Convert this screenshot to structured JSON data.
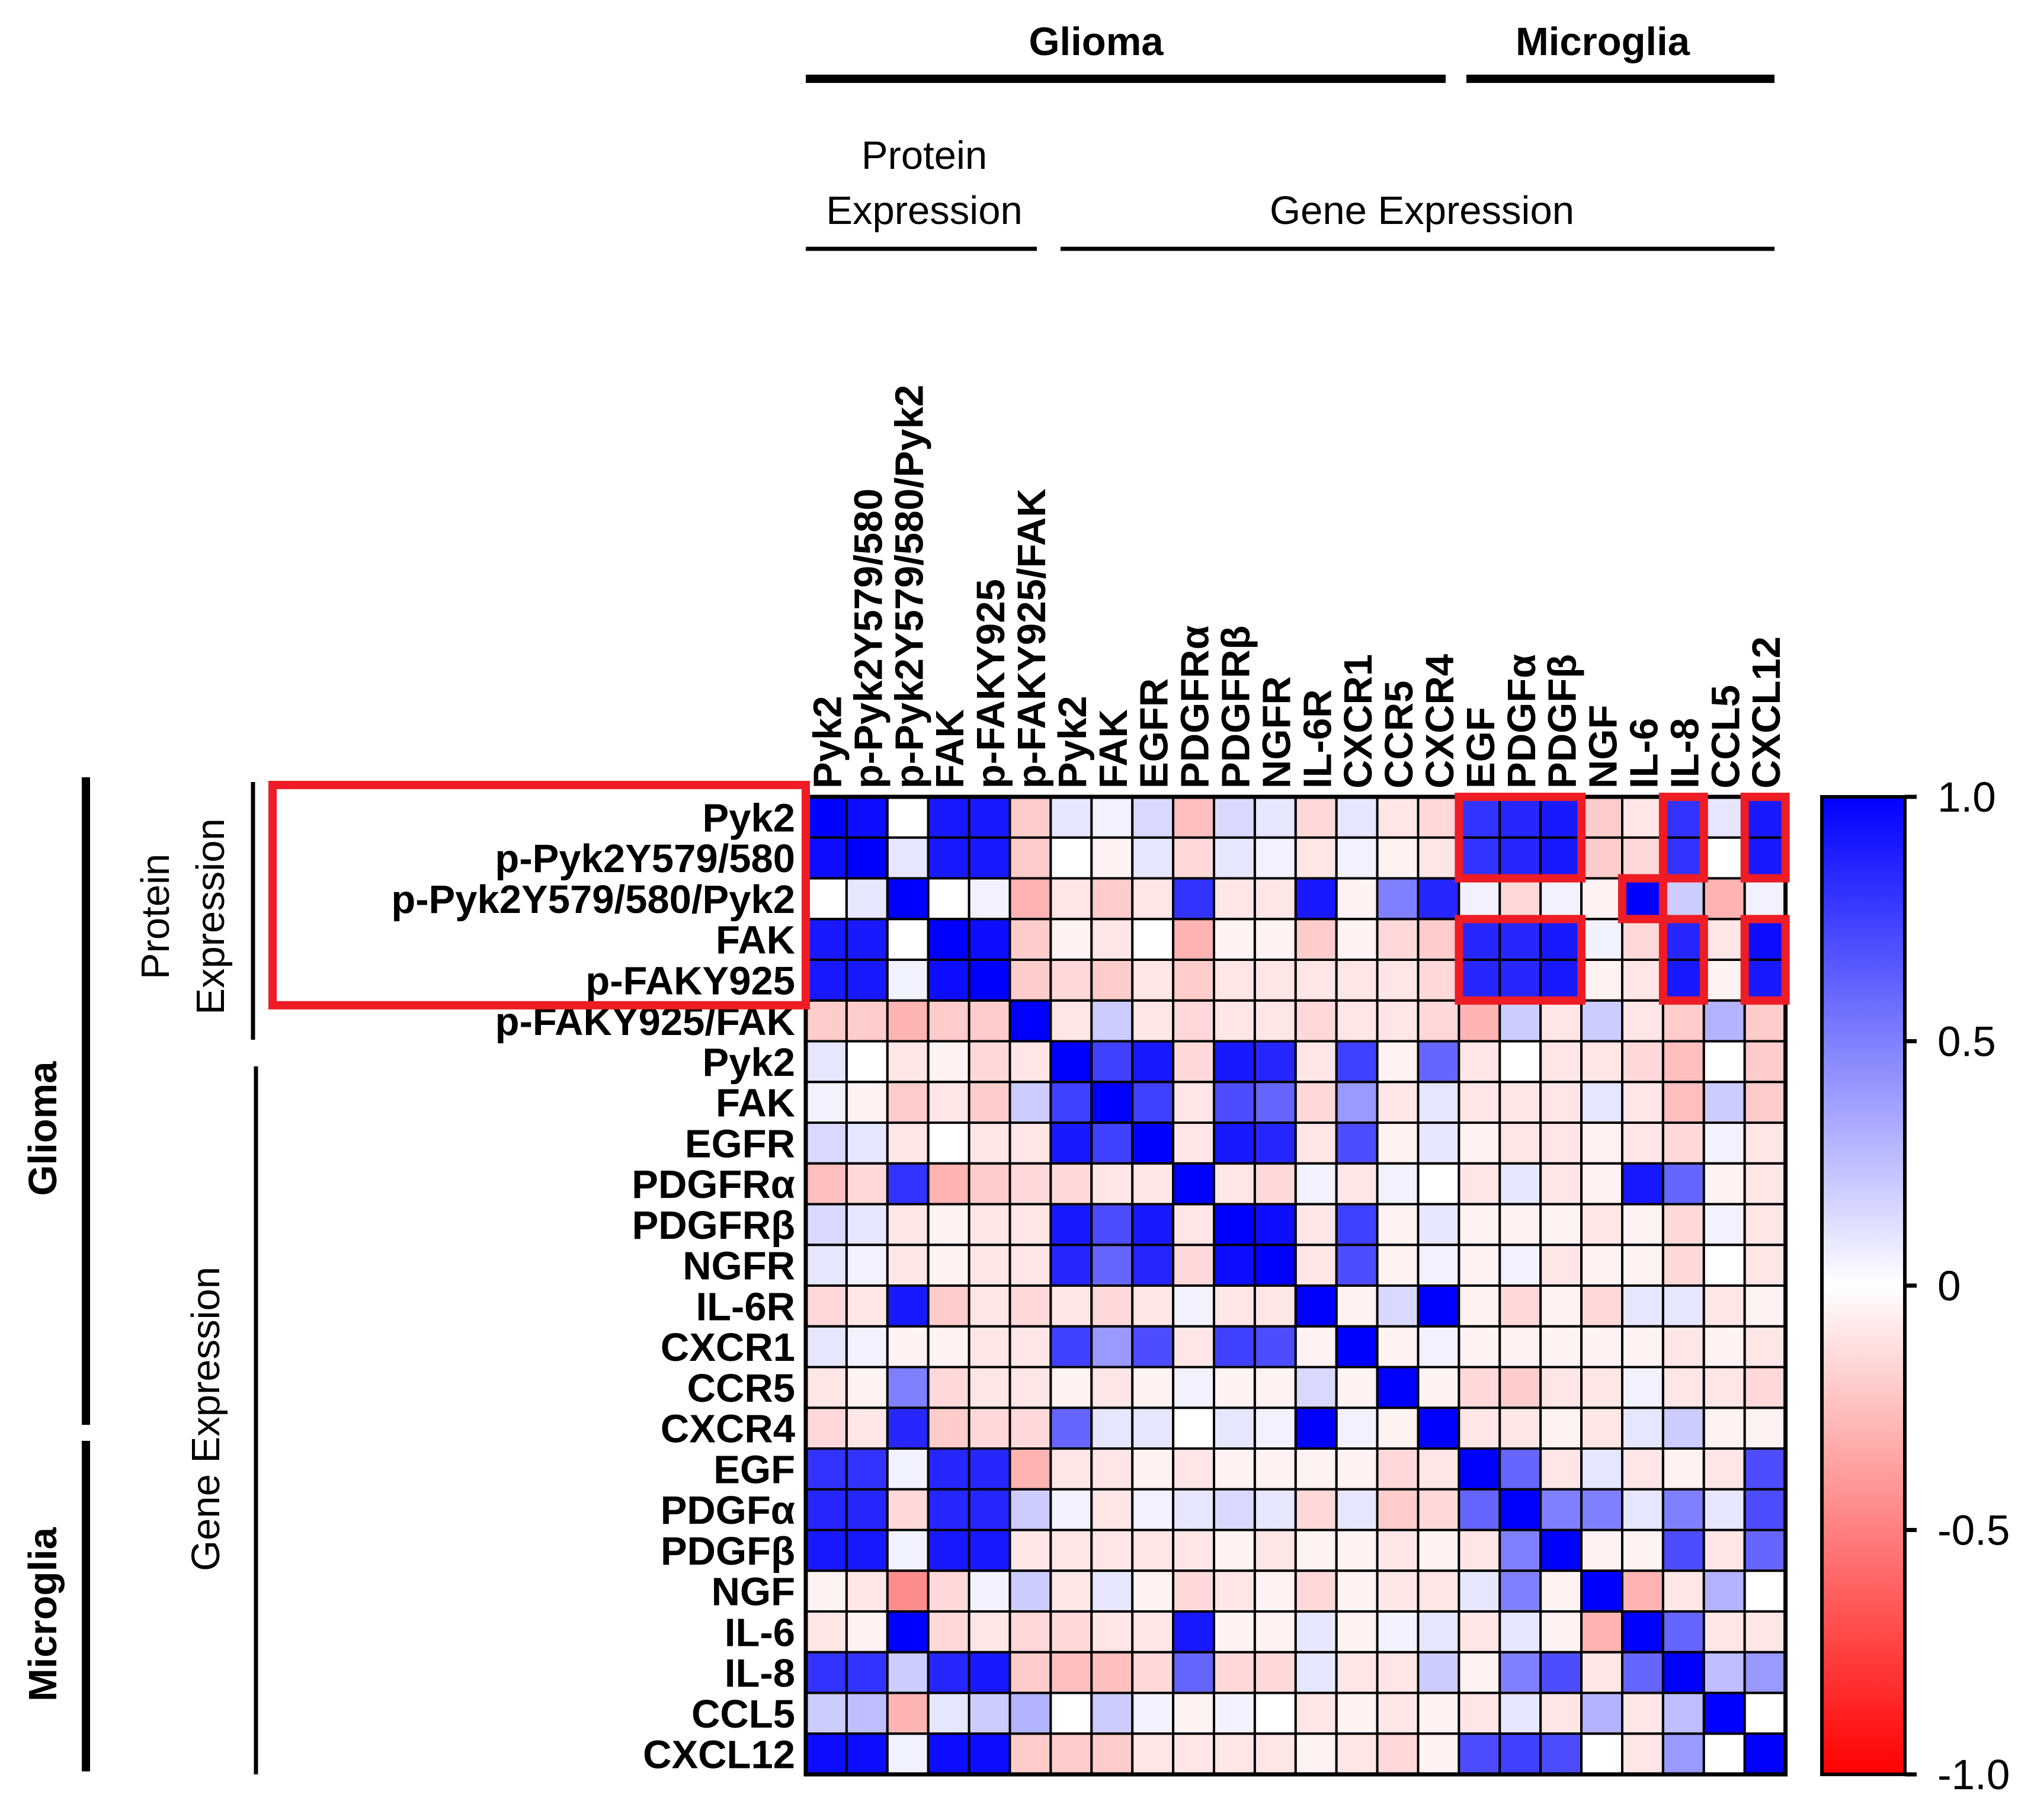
{
  "chart_data": {
    "type": "heatmap",
    "title": "",
    "group_headers": {
      "top": [
        {
          "label": "Glioma"
        },
        {
          "label": "Microglia"
        }
      ],
      "top_sub": [
        {
          "label": "Protein Expression"
        },
        {
          "label": "Gene Expression"
        }
      ],
      "left": [
        {
          "label": "Glioma"
        },
        {
          "label": "Microglia"
        }
      ],
      "left_sub": [
        {
          "label": "Protein Expression"
        },
        {
          "label": "Gene Expression"
        }
      ]
    },
    "row_labels": [
      "Pyk2",
      "p-Pyk2Y579/580",
      "p-Pyk2Y579/580/Pyk2",
      "FAK",
      "p-FAKY925",
      "p-FAKY925/FAK",
      "Pyk2",
      "FAK",
      "EGFR",
      "PDGFRα",
      "PDGFRβ",
      "NGFR",
      "IL-6R",
      "CXCR1",
      "CCR5",
      "CXCR4",
      "EGF",
      "PDGFα",
      "PDGFβ",
      "NGF",
      "IL-6",
      "IL-8",
      "CCL5",
      "CXCL12"
    ],
    "col_labels": [
      "Pyk2",
      "p-Pyk2Y579/580",
      "p-Pyk2Y579/580/Pyk2",
      "FAK",
      "p-FAKY925",
      "p-FAKY925/FAK",
      "Pyk2",
      "FAK",
      "EGFR",
      "PDGFRα",
      "PDGFRβ",
      "NGFR",
      "IL-6R",
      "CXCR1",
      "CCR5",
      "CXCR4",
      "EGF",
      "PDGFα",
      "PDGFβ",
      "NGF",
      "IL-6",
      "IL-8",
      "CCL5",
      "CXCL12"
    ],
    "values": [
      [
        1.0,
        0.95,
        0.0,
        0.9,
        0.9,
        -0.2,
        0.1,
        0.05,
        0.15,
        -0.25,
        0.15,
        0.1,
        -0.15,
        0.1,
        -0.1,
        -0.15,
        0.8,
        0.85,
        0.9,
        -0.2,
        -0.1,
        0.8,
        0.1,
        0.9
      ],
      [
        0.95,
        1.0,
        0.1,
        0.9,
        0.9,
        -0.2,
        0.0,
        -0.05,
        0.1,
        -0.15,
        0.1,
        0.05,
        -0.1,
        0.05,
        -0.05,
        -0.1,
        0.8,
        0.85,
        0.9,
        -0.2,
        -0.15,
        0.8,
        0.0,
        0.9
      ],
      [
        0.0,
        0.1,
        1.0,
        0.0,
        0.05,
        -0.3,
        -0.1,
        -0.2,
        -0.1,
        0.8,
        -0.1,
        -0.1,
        0.9,
        -0.05,
        0.5,
        0.85,
        0.05,
        -0.15,
        0.05,
        -0.05,
        1.0,
        0.2,
        -0.3,
        0.05
      ],
      [
        0.9,
        0.9,
        0.0,
        1.0,
        0.95,
        -0.2,
        -0.05,
        -0.1,
        0.0,
        -0.3,
        -0.05,
        -0.05,
        -0.2,
        -0.05,
        -0.15,
        -0.2,
        0.85,
        0.85,
        0.9,
        0.05,
        -0.15,
        0.85,
        -0.1,
        0.95
      ],
      [
        0.9,
        0.9,
        0.05,
        0.95,
        1.0,
        -0.2,
        -0.15,
        -0.2,
        -0.1,
        -0.2,
        -0.1,
        -0.1,
        -0.1,
        -0.1,
        -0.1,
        -0.15,
        0.85,
        0.85,
        0.9,
        -0.05,
        -0.1,
        0.9,
        -0.05,
        0.9
      ],
      [
        -0.2,
        -0.2,
        -0.3,
        -0.2,
        -0.2,
        1.0,
        -0.1,
        0.2,
        -0.1,
        -0.15,
        -0.1,
        -0.1,
        -0.15,
        -0.1,
        -0.1,
        -0.15,
        -0.3,
        0.2,
        -0.1,
        0.2,
        -0.1,
        -0.2,
        0.3,
        -0.2
      ],
      [
        0.1,
        0.0,
        -0.1,
        -0.05,
        -0.15,
        -0.1,
        1.0,
        0.75,
        0.9,
        -0.15,
        0.9,
        0.85,
        -0.1,
        0.75,
        -0.05,
        0.6,
        -0.1,
        0.0,
        -0.1,
        -0.1,
        -0.15,
        -0.25,
        0.0,
        -0.2
      ],
      [
        0.05,
        -0.05,
        -0.2,
        -0.1,
        -0.2,
        0.2,
        0.75,
        1.0,
        0.75,
        -0.1,
        0.7,
        0.6,
        -0.15,
        0.4,
        -0.1,
        0.1,
        -0.1,
        -0.1,
        -0.1,
        0.1,
        -0.1,
        -0.25,
        0.2,
        -0.2
      ],
      [
        0.15,
        0.1,
        -0.1,
        0.0,
        -0.1,
        -0.1,
        0.9,
        0.75,
        1.0,
        -0.1,
        0.9,
        0.85,
        -0.1,
        0.7,
        -0.05,
        0.1,
        -0.05,
        -0.1,
        -0.1,
        -0.05,
        -0.1,
        -0.15,
        0.05,
        -0.1
      ],
      [
        -0.25,
        -0.15,
        0.8,
        -0.3,
        -0.2,
        -0.15,
        -0.15,
        -0.1,
        -0.1,
        1.0,
        -0.1,
        -0.15,
        0.05,
        -0.1,
        0.05,
        0.0,
        -0.1,
        0.1,
        -0.1,
        -0.05,
        0.9,
        0.6,
        -0.05,
        -0.1
      ],
      [
        0.15,
        0.1,
        -0.1,
        -0.05,
        -0.1,
        -0.1,
        0.9,
        0.7,
        0.9,
        -0.1,
        1.0,
        0.95,
        -0.1,
        0.75,
        -0.05,
        0.1,
        -0.05,
        -0.05,
        -0.05,
        -0.1,
        -0.05,
        -0.15,
        0.05,
        -0.1
      ],
      [
        0.1,
        0.05,
        -0.1,
        -0.05,
        -0.1,
        -0.1,
        0.85,
        0.6,
        0.85,
        -0.15,
        0.95,
        1.0,
        -0.1,
        0.7,
        -0.05,
        0.05,
        -0.05,
        0.05,
        -0.1,
        -0.05,
        -0.05,
        -0.15,
        0.0,
        -0.1
      ],
      [
        -0.15,
        -0.1,
        0.9,
        -0.2,
        -0.1,
        -0.15,
        -0.1,
        -0.15,
        -0.1,
        0.05,
        -0.1,
        -0.1,
        1.0,
        -0.05,
        0.15,
        1.0,
        -0.05,
        -0.15,
        -0.05,
        -0.15,
        0.1,
        0.1,
        -0.1,
        -0.05
      ],
      [
        0.1,
        0.05,
        -0.05,
        -0.05,
        -0.1,
        -0.1,
        0.75,
        0.4,
        0.7,
        -0.1,
        0.75,
        0.7,
        -0.05,
        1.0,
        -0.05,
        0.05,
        -0.05,
        -0.05,
        -0.05,
        -0.05,
        -0.05,
        -0.1,
        -0.05,
        -0.1
      ],
      [
        -0.1,
        -0.05,
        0.5,
        -0.15,
        -0.1,
        -0.1,
        -0.05,
        -0.1,
        -0.05,
        0.05,
        -0.05,
        -0.05,
        0.15,
        -0.05,
        1.0,
        -0.05,
        -0.15,
        -0.2,
        -0.1,
        -0.1,
        0.05,
        -0.1,
        -0.1,
        -0.15
      ],
      [
        -0.15,
        -0.1,
        0.85,
        -0.2,
        -0.15,
        -0.15,
        0.6,
        0.1,
        0.1,
        0.0,
        0.1,
        0.05,
        1.0,
        0.05,
        -0.05,
        1.0,
        -0.1,
        -0.1,
        -0.05,
        -0.1,
        0.1,
        0.2,
        -0.05,
        -0.05
      ],
      [
        0.8,
        0.8,
        0.05,
        0.85,
        0.85,
        -0.3,
        -0.1,
        -0.1,
        -0.05,
        -0.1,
        -0.05,
        -0.05,
        -0.05,
        -0.05,
        -0.15,
        -0.1,
        1.0,
        0.6,
        -0.1,
        0.1,
        -0.1,
        -0.05,
        -0.1,
        0.7
      ],
      [
        0.85,
        0.85,
        -0.15,
        0.85,
        0.85,
        0.2,
        0.05,
        -0.1,
        0.05,
        0.1,
        0.15,
        0.1,
        -0.15,
        0.1,
        -0.2,
        -0.15,
        0.6,
        1.0,
        0.5,
        0.5,
        0.1,
        0.5,
        0.1,
        0.7
      ],
      [
        0.9,
        0.9,
        0.05,
        0.9,
        0.9,
        -0.1,
        -0.1,
        -0.1,
        -0.1,
        -0.1,
        -0.05,
        -0.1,
        -0.05,
        -0.05,
        -0.1,
        -0.05,
        -0.1,
        0.5,
        1.0,
        -0.05,
        -0.05,
        0.7,
        -0.1,
        0.6
      ],
      [
        -0.05,
        -0.1,
        -0.45,
        -0.15,
        0.05,
        0.2,
        -0.1,
        0.1,
        -0.05,
        -0.15,
        -0.1,
        -0.05,
        -0.15,
        -0.05,
        -0.1,
        -0.1,
        0.1,
        0.5,
        -0.05,
        1.0,
        -0.3,
        -0.1,
        0.3,
        0.0
      ],
      [
        -0.1,
        -0.05,
        1.0,
        -0.15,
        -0.1,
        -0.15,
        -0.15,
        -0.1,
        -0.1,
        0.9,
        -0.05,
        -0.05,
        0.1,
        -0.05,
        0.05,
        0.1,
        -0.1,
        0.1,
        -0.05,
        -0.3,
        1.0,
        0.6,
        -0.1,
        -0.1
      ],
      [
        0.8,
        0.8,
        0.2,
        0.85,
        0.9,
        -0.2,
        -0.25,
        -0.25,
        -0.15,
        0.6,
        -0.15,
        -0.15,
        0.1,
        -0.1,
        -0.1,
        0.2,
        -0.05,
        0.5,
        0.7,
        -0.1,
        0.6,
        1.0,
        0.25,
        0.4
      ],
      [
        0.2,
        0.25,
        -0.3,
        0.1,
        0.2,
        0.3,
        0.0,
        0.2,
        0.05,
        -0.05,
        0.05,
        0.0,
        -0.1,
        -0.05,
        -0.1,
        -0.05,
        -0.1,
        0.1,
        -0.1,
        0.3,
        -0.1,
        0.25,
        1.0,
        0.0
      ],
      [
        0.95,
        0.95,
        0.05,
        0.95,
        0.95,
        -0.2,
        -0.2,
        -0.2,
        -0.1,
        -0.1,
        -0.1,
        -0.1,
        -0.05,
        -0.1,
        -0.15,
        -0.05,
        0.7,
        0.75,
        0.7,
        0.0,
        -0.1,
        0.4,
        0.0,
        1.0
      ]
    ],
    "highlight_regions": [
      {
        "row_start": 0,
        "row_end": 4,
        "col_start": -1,
        "col_end": -1,
        "label_box": true
      },
      {
        "row_start": 0,
        "row_end": 1,
        "col_start": 16,
        "col_end": 18
      },
      {
        "row_start": 0,
        "row_end": 1,
        "col_start": 21,
        "col_end": 21
      },
      {
        "row_start": 0,
        "row_end": 1,
        "col_start": 23,
        "col_end": 23
      },
      {
        "row_start": 2,
        "row_end": 2,
        "col_start": 20,
        "col_end": 20
      },
      {
        "row_start": 3,
        "row_end": 4,
        "col_start": 16,
        "col_end": 18
      },
      {
        "row_start": 3,
        "row_end": 4,
        "col_start": 21,
        "col_end": 21
      },
      {
        "row_start": 3,
        "row_end": 4,
        "col_start": 23,
        "col_end": 23
      }
    ],
    "colorbar": {
      "range": [
        -1.0,
        1.0
      ],
      "ticks": [
        1.0,
        0.5,
        0,
        -0.5,
        -1.0
      ],
      "tick_labels": [
        "1.0",
        "0.5",
        "0",
        "-0.5",
        "-1.0"
      ],
      "colors": {
        "min": "#ff0000",
        "mid": "#ffffff",
        "max": "#0000ff"
      }
    },
    "highlight_color": "#ee1c24"
  }
}
